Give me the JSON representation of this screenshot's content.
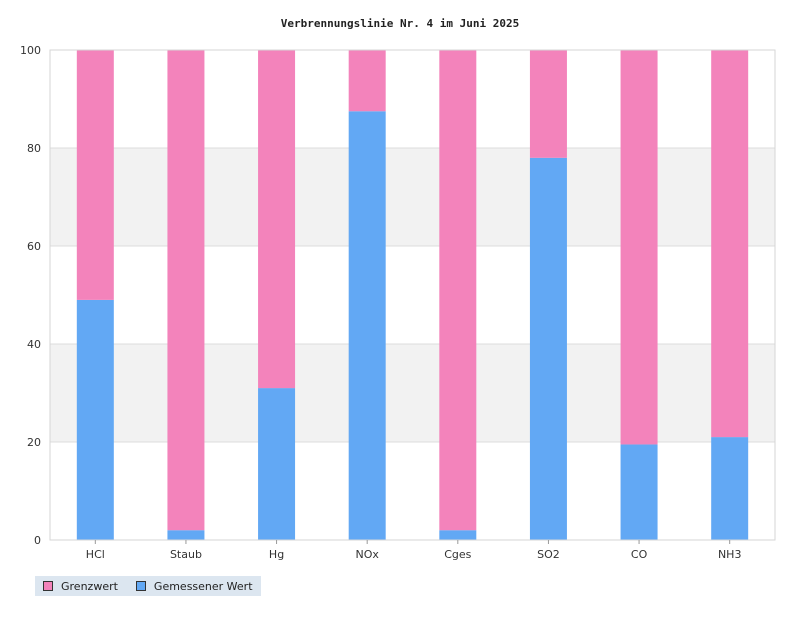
{
  "chart_data": {
    "type": "bar",
    "stacked": true,
    "title": "Verbrennungslinie Nr. 4 im Juni 2025",
    "categories": [
      "HCl",
      "Staub",
      "Hg",
      "NOx",
      "Cges",
      "SO2",
      "CO",
      "NH3"
    ],
    "series": [
      {
        "name": "Gemessener Wert",
        "color": "#62a8f4",
        "values": [
          49,
          2,
          31,
          87.5,
          2,
          78,
          19.5,
          21
        ]
      },
      {
        "name": "Grenzwert",
        "color": "#f383bb",
        "values": [
          51,
          98,
          69,
          12.5,
          98,
          22,
          80.5,
          79
        ]
      }
    ],
    "legend_order": [
      "Grenzwert",
      "Gemessener Wert"
    ],
    "ylim": [
      0,
      100
    ],
    "yticks": [
      0,
      20,
      40,
      60,
      80,
      100
    ],
    "grid": "alternating-bands",
    "legend_position": "bottom-left"
  }
}
